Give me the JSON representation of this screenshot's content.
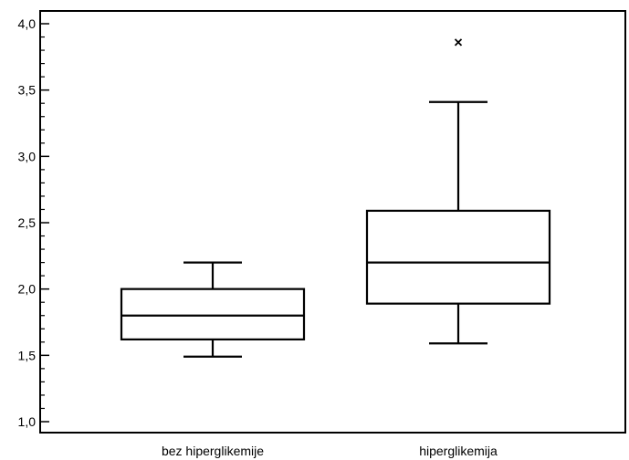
{
  "chart_data": {
    "type": "box",
    "title": "",
    "xlabel": "",
    "ylabel": "",
    "ylim": [
      1.0,
      4.0
    ],
    "y_major_ticks": [
      1.0,
      1.5,
      2.0,
      2.5,
      3.0,
      3.5,
      4.0
    ],
    "y_tick_labels": [
      "1,0",
      "1,5",
      "2,0",
      "2,5",
      "3,0",
      "3,5",
      "4,0"
    ],
    "y_minor_tick_step": 0.1,
    "grid": false,
    "categories": [
      "bez hiperglikemije",
      "hiperglikemija"
    ],
    "boxes": [
      {
        "category": "bez hiperglikemije",
        "whisker_low": 1.49,
        "q1": 1.62,
        "median": 1.8,
        "q3": 2.0,
        "whisker_high": 2.2,
        "outliers": []
      },
      {
        "category": "hiperglikemija",
        "whisker_low": 1.59,
        "q1": 1.89,
        "median": 2.2,
        "q3": 2.59,
        "whisker_high": 3.41,
        "outliers": [
          3.86
        ]
      }
    ]
  }
}
